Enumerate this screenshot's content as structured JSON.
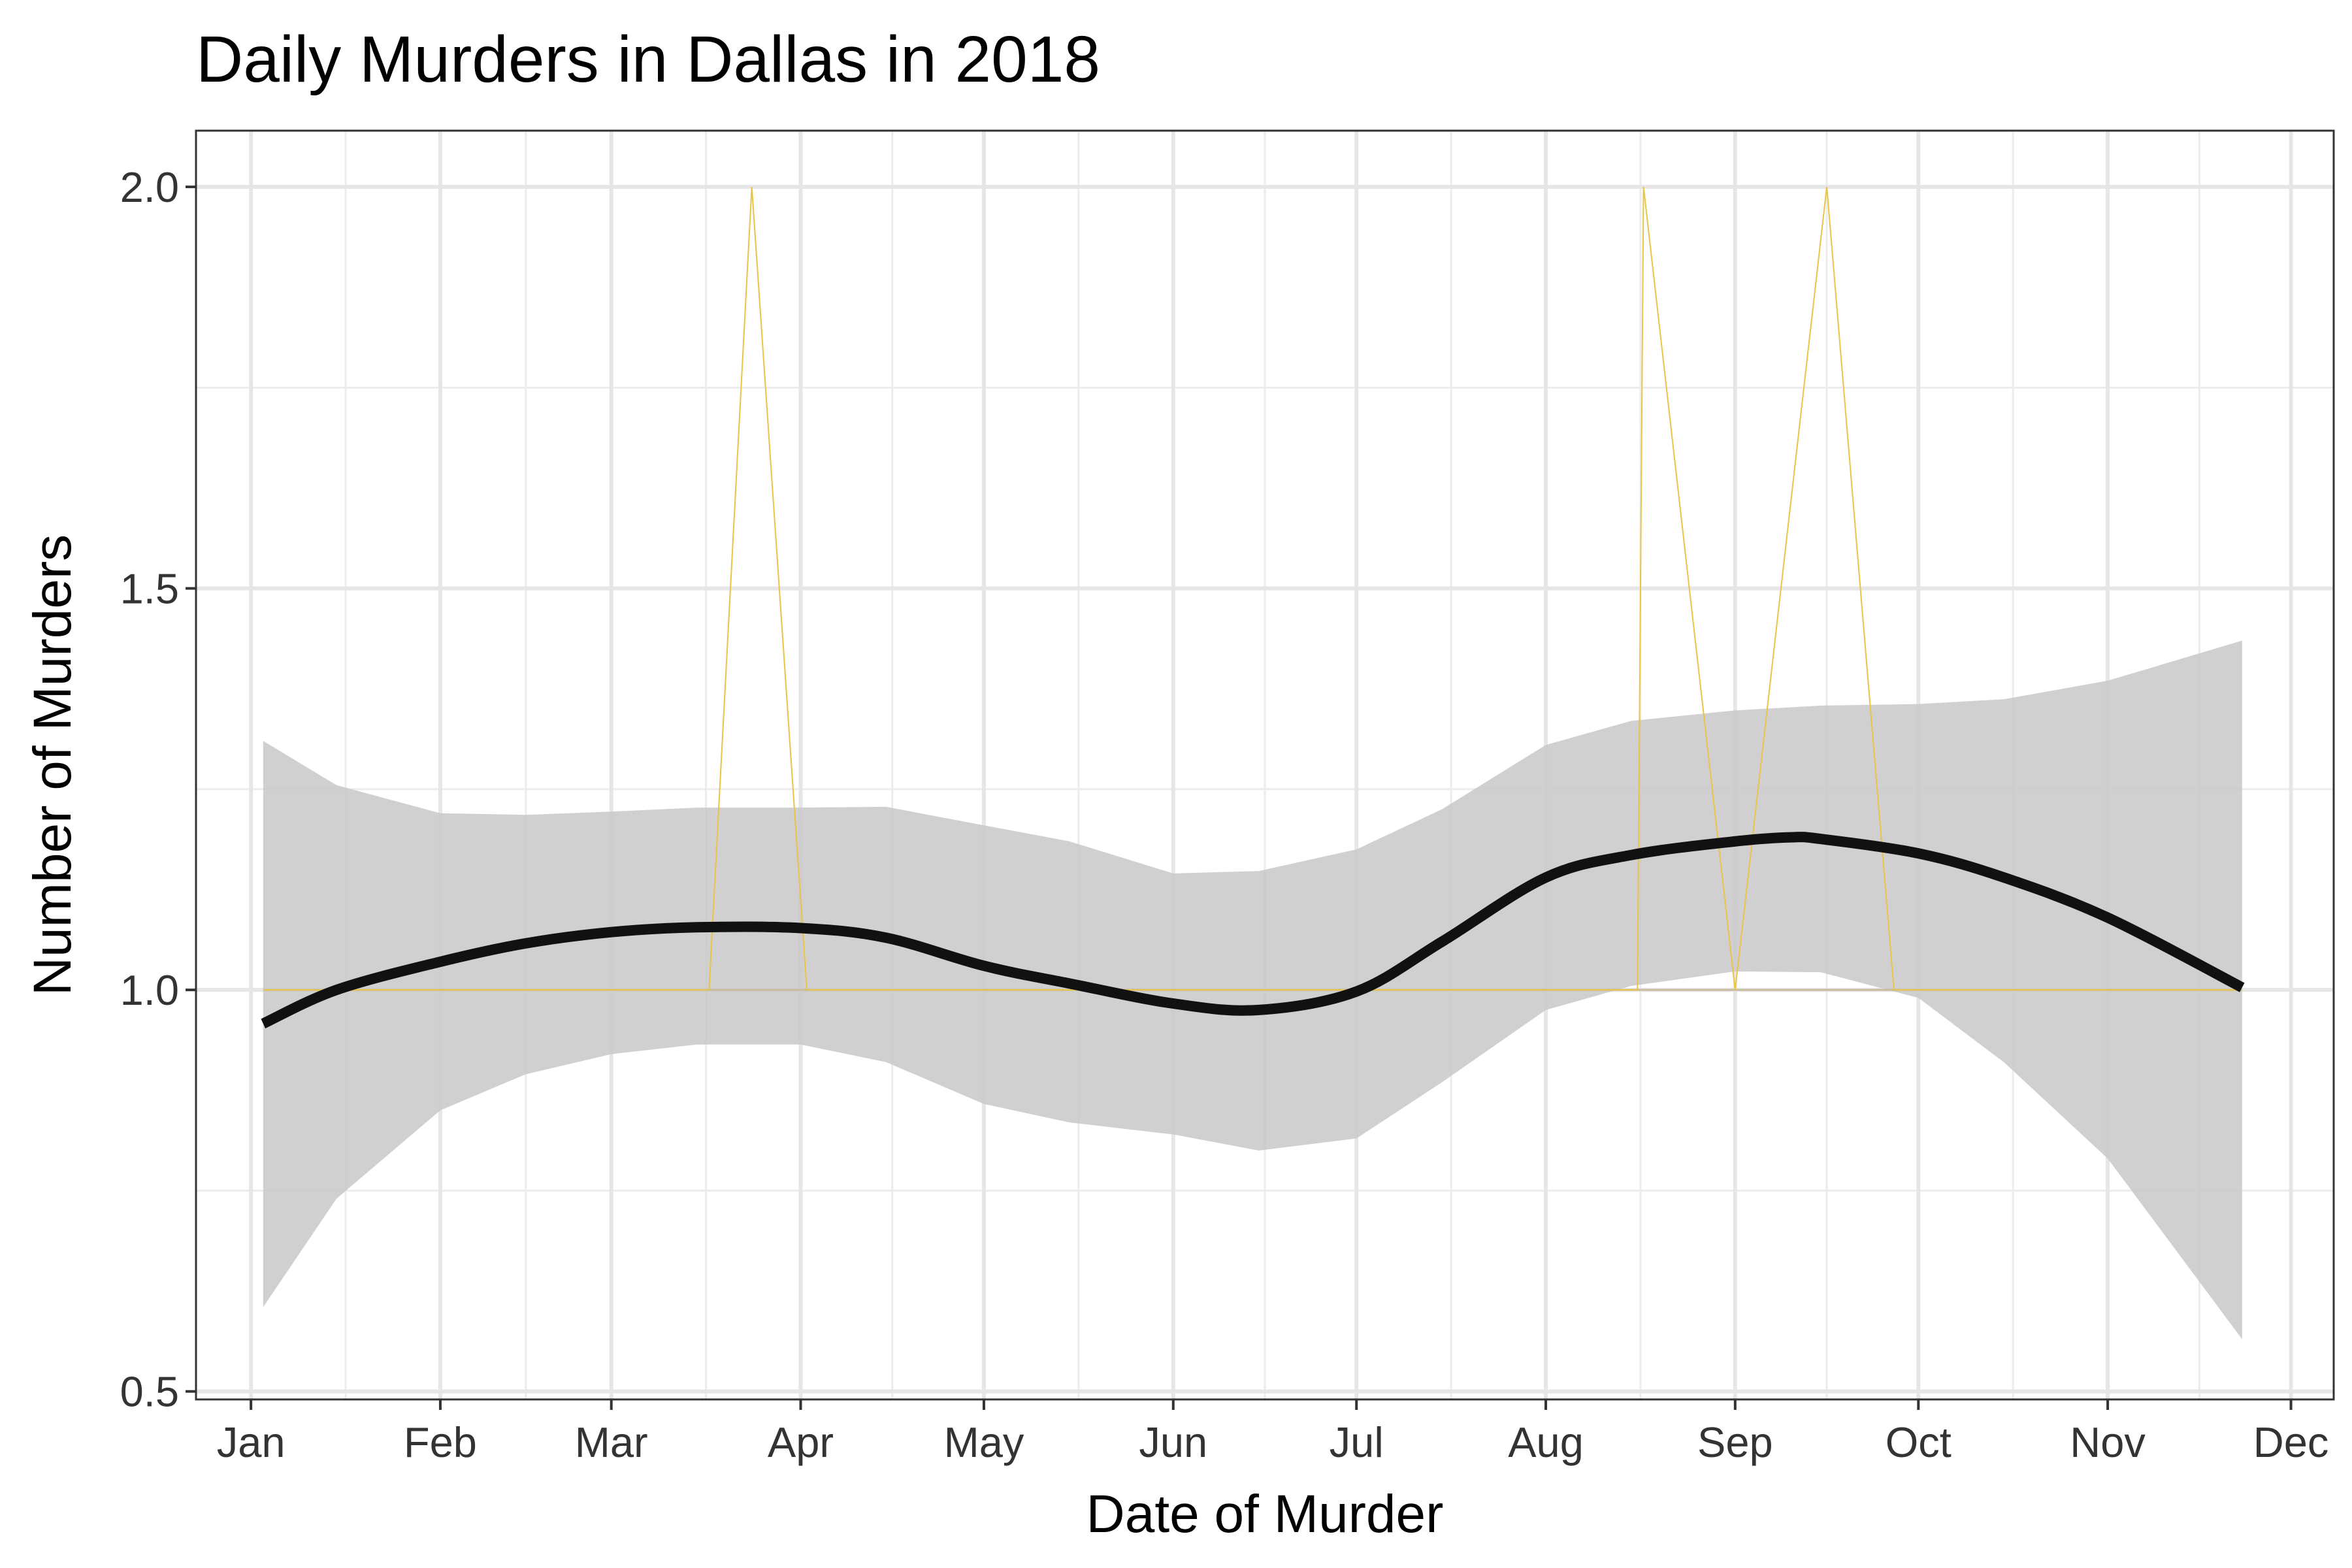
{
  "chart_data": {
    "type": "line",
    "title": "Daily Murders in Dallas in 2018",
    "xlabel": "Date of Murder",
    "ylabel": "Number of Murders",
    "x_is_date": true,
    "xlim": [
      "2017-12-23",
      "2018-12-08"
    ],
    "ylim": [
      0.49,
      2.07
    ],
    "y_ticks": [
      0.5,
      1.0,
      1.5,
      2.0
    ],
    "y_tick_labels": [
      "0.5",
      "1.0",
      "1.5",
      "2.0"
    ],
    "x_ticks": [
      "2018-01-01",
      "2018-02-01",
      "2018-03-01",
      "2018-04-01",
      "2018-05-01",
      "2018-06-01",
      "2018-07-01",
      "2018-08-01",
      "2018-09-01",
      "2018-10-01",
      "2018-11-01",
      "2018-12-01"
    ],
    "x_tick_labels": [
      "Jan",
      "Feb",
      "Mar",
      "Apr",
      "May",
      "Jun",
      "Jul",
      "Aug",
      "Sep",
      "Oct",
      "Nov",
      "Dec"
    ],
    "grid": true,
    "series": [
      {
        "kind": "raw",
        "color": "#e8c547",
        "x": [
          "2018-01-03",
          "2018-03-17",
          "2018-03-24",
          "2018-04-02",
          "2018-08-16",
          "2018-08-17",
          "2018-09-01",
          "2018-09-16",
          "2018-09-27",
          "2018-11-23"
        ],
        "y": [
          1,
          1,
          2,
          1,
          1,
          2,
          1,
          2,
          1,
          1
        ]
      },
      {
        "kind": "smooth",
        "color": "#111111",
        "x": [
          "2018-01-03",
          "2018-01-15",
          "2018-02-01",
          "2018-02-15",
          "2018-03-01",
          "2018-03-15",
          "2018-04-01",
          "2018-04-15",
          "2018-05-01",
          "2018-05-15",
          "2018-06-01",
          "2018-06-15",
          "2018-07-01",
          "2018-07-15",
          "2018-08-01",
          "2018-08-15",
          "2018-09-01",
          "2018-09-10",
          "2018-09-15",
          "2018-10-01",
          "2018-10-15",
          "2018-11-01",
          "2018-11-23"
        ],
        "y": [
          0.958,
          1.0,
          1.035,
          1.058,
          1.072,
          1.078,
          1.077,
          1.065,
          1.03,
          1.008,
          0.983,
          0.975,
          0.998,
          1.06,
          1.14,
          1.168,
          1.185,
          1.19,
          1.188,
          1.17,
          1.14,
          1.09,
          1.003
        ]
      },
      {
        "kind": "confidence_band",
        "color": "#c8c8c8",
        "x": [
          "2018-01-03",
          "2018-01-15",
          "2018-02-01",
          "2018-02-15",
          "2018-03-01",
          "2018-03-15",
          "2018-04-01",
          "2018-04-15",
          "2018-05-01",
          "2018-05-15",
          "2018-06-01",
          "2018-06-15",
          "2018-07-01",
          "2018-07-15",
          "2018-08-01",
          "2018-08-15",
          "2018-09-01",
          "2018-09-15",
          "2018-10-01",
          "2018-10-15",
          "2018-11-01",
          "2018-11-23"
        ],
        "upper": [
          1.31,
          1.255,
          1.22,
          1.218,
          1.222,
          1.227,
          1.227,
          1.228,
          1.205,
          1.185,
          1.145,
          1.148,
          1.175,
          1.225,
          1.305,
          1.335,
          1.348,
          1.354,
          1.356,
          1.362,
          1.385,
          1.435
        ],
        "lower": [
          0.605,
          0.74,
          0.85,
          0.895,
          0.92,
          0.932,
          0.932,
          0.91,
          0.858,
          0.835,
          0.82,
          0.8,
          0.815,
          0.885,
          0.975,
          1.005,
          1.023,
          1.022,
          0.99,
          0.91,
          0.79,
          0.565
        ]
      }
    ]
  }
}
